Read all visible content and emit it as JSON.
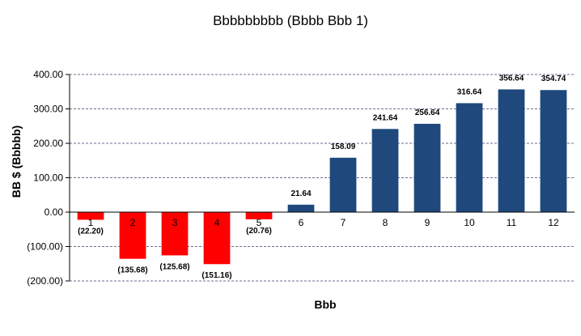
{
  "chart_data": {
    "type": "bar",
    "title": "Bbbbbbbbb (Bbbb Bbb 1)",
    "xlabel": "Bbb",
    "ylabel": "BB $ (Bbbbb)",
    "categories": [
      "1",
      "2",
      "3",
      "4",
      "5",
      "6",
      "7",
      "8",
      "9",
      "10",
      "11",
      "12"
    ],
    "values": [
      -22.2,
      -135.68,
      -125.68,
      -151.16,
      -20.76,
      21.64,
      158.09,
      241.64,
      256.64,
      316.64,
      356.64,
      354.74
    ],
    "data_labels": [
      "(22.20)",
      "(135.68)",
      "(125.68)",
      "(151.16)",
      "(20.76)",
      "21.64",
      "158.09",
      "241.64",
      "256.64",
      "316.64",
      "356.64",
      "354.74"
    ],
    "y_ticks": [
      400,
      300,
      200,
      100,
      0,
      -100,
      -200
    ],
    "y_tick_labels": [
      "400.00",
      "300.00",
      "200.00",
      "100.00",
      "0.00",
      "(100.00)",
      "(200.00)"
    ],
    "ylim": [
      -200,
      400
    ],
    "grid": true,
    "legend": "none",
    "colors": {
      "positive": "#1F497D",
      "negative": "#FF0000",
      "grid": "#6E6E90",
      "axis": "#000000"
    }
  }
}
